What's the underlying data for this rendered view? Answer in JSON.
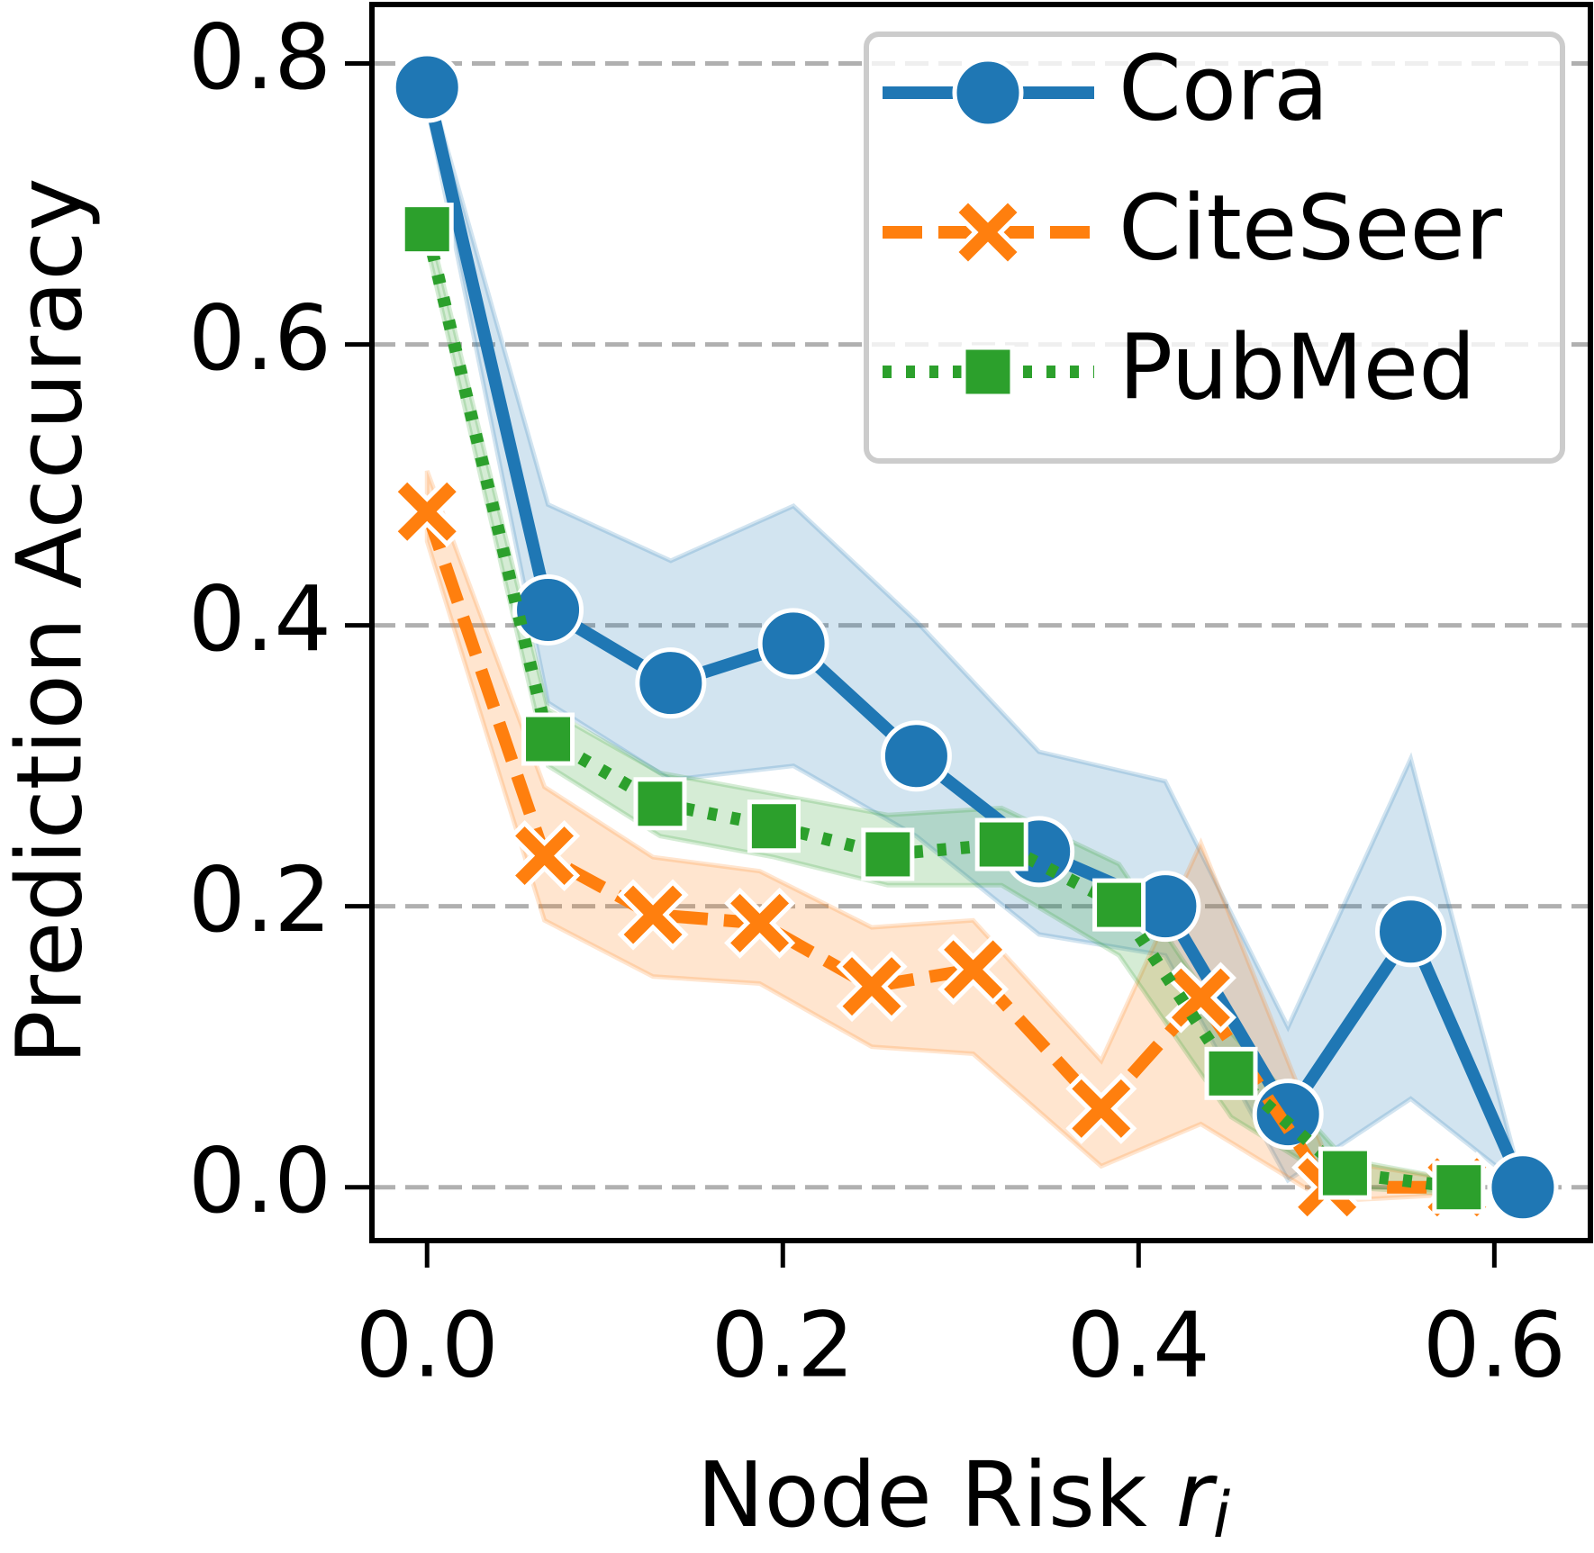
{
  "chart_data": {
    "type": "line",
    "xlabel": "Node Risk",
    "xlabel_symbol": "r",
    "xlabel_subscript": "i",
    "ylabel": "Prediction Accuracy",
    "xlim": [
      -0.031,
      0.654
    ],
    "ylim": [
      -0.038,
      0.842
    ],
    "xticks": [
      {
        "value": 0,
        "label": "0.0"
      },
      {
        "value": 0.2,
        "label": "0.2"
      },
      {
        "value": 0.4,
        "label": "0.4"
      },
      {
        "value": 0.6,
        "label": "0.6"
      }
    ],
    "yticks": [
      {
        "value": 0,
        "label": "0.0"
      },
      {
        "value": 0.2,
        "label": "0.2"
      },
      {
        "value": 0.4,
        "label": "0.4"
      },
      {
        "value": 0.6,
        "label": "0.6"
      },
      {
        "value": 0.8,
        "label": "0.8"
      }
    ],
    "grid": true,
    "legend": "upper right",
    "series": [
      {
        "name": "Cora",
        "color": "#1f77b4",
        "linestyle": "solid",
        "marker": "circle",
        "x": [
          0,
          0.068,
          0.137,
          0.206,
          0.275,
          0.344,
          0.415,
          0.484,
          0.553,
          0.616
        ],
        "values": [
          0.783,
          0.411,
          0.359,
          0.387,
          0.307,
          0.239,
          0.2,
          0.052,
          0.182,
          0
        ],
        "upper": [
          0.79,
          0.486,
          0.446,
          0.485,
          0.403,
          0.31,
          0.289,
          0.114,
          0.305,
          0
        ],
        "lower": [
          0.77,
          0.345,
          0.29,
          0.3,
          0.25,
          0.18,
          0.165,
          0.005,
          0.063,
          0
        ]
      },
      {
        "name": "CiteSeer",
        "color": "#ff7f0e",
        "linestyle": "dashed",
        "marker": "x",
        "x": [
          0,
          0.066,
          0.127,
          0.187,
          0.25,
          0.307,
          0.379,
          0.435,
          0.506,
          0.579
        ],
        "values": [
          0.481,
          0.236,
          0.194,
          0.188,
          0.143,
          0.155,
          0.056,
          0.135,
          0,
          0
        ],
        "upper": [
          0.51,
          0.285,
          0.235,
          0.225,
          0.185,
          0.19,
          0.09,
          0.245,
          0.02,
          0.005
        ],
        "lower": [
          0.46,
          0.19,
          0.15,
          0.145,
          0.1,
          0.095,
          0.015,
          0.045,
          -0.01,
          -0.005
        ]
      },
      {
        "name": "PubMed",
        "color": "#2ca02c",
        "linestyle": "dotted",
        "marker": "square",
        "x": [
          0,
          0.068,
          0.131,
          0.195,
          0.259,
          0.323,
          0.389,
          0.452,
          0.516,
          0.58
        ],
        "values": [
          0.682,
          0.319,
          0.273,
          0.257,
          0.237,
          0.244,
          0.201,
          0.081,
          0.01,
          0
        ],
        "upper": [
          0.69,
          0.34,
          0.295,
          0.28,
          0.265,
          0.27,
          0.23,
          0.11,
          0.02,
          0.005
        ],
        "lower": [
          0.67,
          0.3,
          0.25,
          0.235,
          0.215,
          0.215,
          0.165,
          0.05,
          0,
          -0.005
        ]
      }
    ]
  }
}
